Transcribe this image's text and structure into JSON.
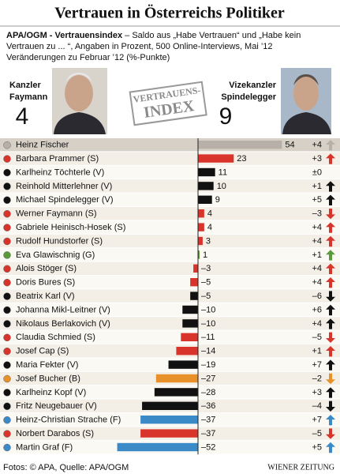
{
  "title": "Vertrauen in Österreichs Politiker",
  "subtitle_bold": "APA/OGM - Vertrauensindex",
  "subtitle_lines": [
    " – Saldo aus „Habe Vertrauen“ und „Habe kein",
    "Vertrauen zu ... “, Angaben in Prozent, 500 Online-Interviews, Mai ’12",
    "Veränderungen zu Februar ’12 (%-Punkte)"
  ],
  "featured": [
    {
      "role": "Kanzler",
      "name": "Faymann",
      "value": 4,
      "color": "#d9342b"
    },
    {
      "role": "Vizekanzler",
      "name": "Spindelegger",
      "value": 9,
      "color": "#111111"
    }
  ],
  "stamp": [
    "VERTRAUENS-",
    "INDEX"
  ],
  "chart_data": {
    "type": "bar",
    "categories": [
      "Heinz Fischer",
      "Barbara Prammer (S)",
      "Karlheinz Töchterle (V)",
      "Reinhold Mitterlehner (V)",
      "Michael Spindelegger (V)",
      "Werner Faymann (S)",
      "Gabriele Heinisch-Hosek (S)",
      "Rudolf Hundstorfer (S)",
      "Eva Glawischnig (G)",
      "Alois Stöger (S)",
      "Doris Bures (S)",
      "Beatrix Karl (V)",
      "Johanna Mikl-Leitner (V)",
      "Nikolaus Berlakovich (V)",
      "Claudia Schmied (S)",
      "Josef Cap (S)",
      "Maria Fekter (V)",
      "Josef Bucher (B)",
      "Karlheinz Kopf (V)",
      "Fritz Neugebauer (V)",
      "Heinz-Christian Strache (F)",
      "Norbert Darabos (S)",
      "Martin Graf (F)"
    ],
    "values": [
      54,
      23,
      11,
      10,
      9,
      4,
      4,
      3,
      1,
      -3,
      -5,
      -5,
      -10,
      -10,
      -11,
      -14,
      -19,
      -27,
      -28,
      -36,
      -37,
      -37,
      -52
    ],
    "value_labels": [
      "54",
      "23",
      "11",
      "10",
      "9",
      "4",
      "4",
      "3",
      "1",
      "–3",
      "–5",
      "–5",
      "–10",
      "–10",
      "–11",
      "–14",
      "–19",
      "–27",
      "–28",
      "–36",
      "–37",
      "–37",
      "–52"
    ],
    "colors": [
      "#b8b0a8",
      "#d9342b",
      "#111111",
      "#111111",
      "#111111",
      "#d9342b",
      "#d9342b",
      "#d9342b",
      "#5a9a3a",
      "#d9342b",
      "#d9342b",
      "#111111",
      "#111111",
      "#111111",
      "#d9342b",
      "#d9342b",
      "#111111",
      "#e8902a",
      "#111111",
      "#111111",
      "#3a8ac8",
      "#d9342b",
      "#3a8ac8"
    ],
    "changes": {
      "values": [
        4,
        3,
        0,
        1,
        5,
        -3,
        4,
        4,
        1,
        4,
        4,
        -6,
        6,
        4,
        -5,
        1,
        7,
        -2,
        3,
        -4,
        7,
        -5,
        5
      ],
      "value_labels": [
        "+4",
        "+3",
        "±0",
        "+1",
        "+5",
        "–3",
        "+4",
        "+4",
        "+1",
        "+4",
        "+4",
        "–6",
        "+6",
        "+4",
        "–5",
        "+1",
        "+7",
        "–2",
        "+3",
        "–4",
        "+7",
        "–5",
        "+5"
      ]
    }
  },
  "source": "Fotos: © APA, Quelle: APA/OGM",
  "publisher": "WIENER ZEITUNG"
}
